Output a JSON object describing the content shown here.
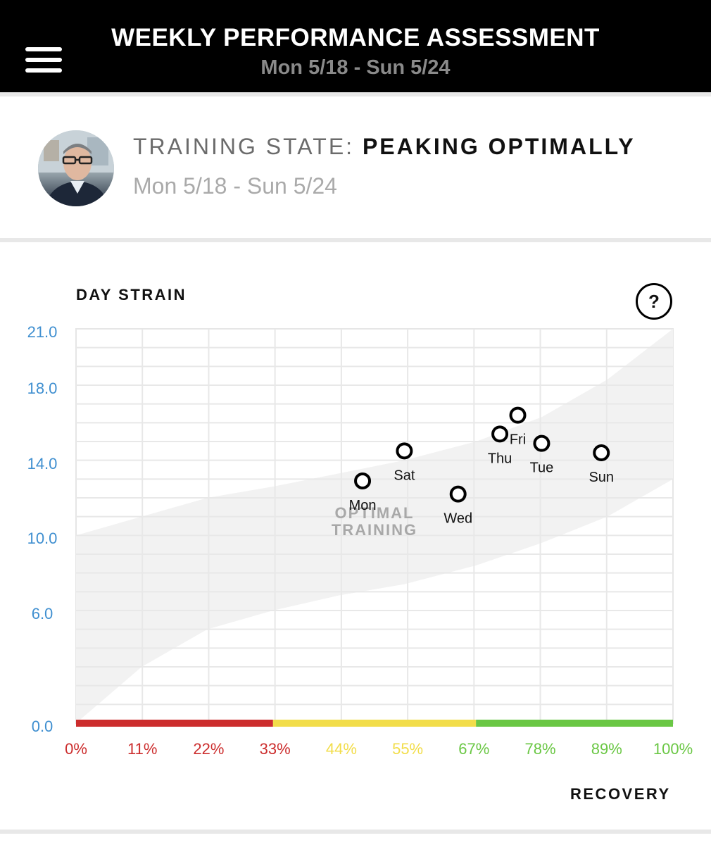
{
  "header": {
    "title": "WEEKLY PERFORMANCE ASSESSMENT",
    "subtitle": "Mon 5/18 - Sun 5/24",
    "menu_icon": "hamburger-menu-icon"
  },
  "summary": {
    "state_label": "TRAINING STATE:",
    "state_value": "PEAKING OPTIMALLY",
    "dates": "Mon 5/18 - Sun 5/24"
  },
  "chart_section": {
    "title": "DAY STRAIN",
    "help_label": "?",
    "x_axis_label": "RECOVERY",
    "zone_label": [
      "OPTIMAL",
      "TRAINING"
    ]
  },
  "colors": {
    "red": "#cc2d2d",
    "yellow": "#f2dd4a",
    "green": "#6ac744",
    "ytick": "#3f8fd0",
    "band": "#f2f2f2"
  },
  "chart_data": {
    "type": "scatter",
    "xlabel": "RECOVERY",
    "ylabel": "DAY STRAIN",
    "xlim": [
      0,
      100
    ],
    "ylim": [
      0,
      21
    ],
    "yticks": [
      "21.0",
      "18.0",
      "14.0",
      "10.0",
      "6.0",
      "0.0"
    ],
    "xticks": [
      {
        "label": "0%",
        "zone": "red"
      },
      {
        "label": "11%",
        "zone": "red"
      },
      {
        "label": "22%",
        "zone": "red"
      },
      {
        "label": "33%",
        "zone": "red"
      },
      {
        "label": "44%",
        "zone": "yellow"
      },
      {
        "label": "55%",
        "zone": "yellow"
      },
      {
        "label": "67%",
        "zone": "green"
      },
      {
        "label": "78%",
        "zone": "green"
      },
      {
        "label": "89%",
        "zone": "green"
      },
      {
        "label": "100%",
        "zone": "green"
      }
    ],
    "zones": [
      {
        "zone": "red",
        "from": 0,
        "to": 33
      },
      {
        "zone": "yellow",
        "from": 33,
        "to": 67
      },
      {
        "zone": "green",
        "from": 67,
        "to": 100
      }
    ],
    "band_lower": [
      [
        0,
        0
      ],
      [
        11,
        3
      ],
      [
        22,
        5
      ],
      [
        33,
        6
      ],
      [
        44,
        6.8
      ],
      [
        55,
        7.4
      ],
      [
        67,
        8.4
      ],
      [
        78,
        9.6
      ],
      [
        89,
        11
      ],
      [
        100,
        13
      ]
    ],
    "band_upper": [
      [
        0,
        10
      ],
      [
        11,
        11
      ],
      [
        22,
        12
      ],
      [
        33,
        12.6
      ],
      [
        44,
        13.3
      ],
      [
        55,
        14
      ],
      [
        67,
        15
      ],
      [
        78,
        16.3
      ],
      [
        89,
        18.3
      ],
      [
        100,
        21
      ]
    ],
    "points": [
      {
        "label": "Mon",
        "x": 48,
        "y": 12.9,
        "label_pos": "below"
      },
      {
        "label": "Sat",
        "x": 55,
        "y": 14.5,
        "label_pos": "below"
      },
      {
        "label": "Wed",
        "x": 64,
        "y": 12.2,
        "label_pos": "below"
      },
      {
        "label": "Thu",
        "x": 71,
        "y": 15.4,
        "label_pos": "below"
      },
      {
        "label": "Fri",
        "x": 74,
        "y": 16.4,
        "label_pos": "below"
      },
      {
        "label": "Tue",
        "x": 78,
        "y": 14.9,
        "label_pos": "below"
      },
      {
        "label": "Sun",
        "x": 88,
        "y": 14.4,
        "label_pos": "below"
      }
    ]
  }
}
